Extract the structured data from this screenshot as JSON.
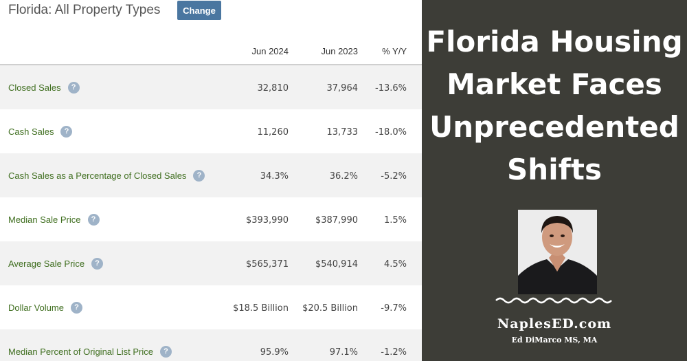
{
  "header": {
    "title": "Florida: All Property Types",
    "change_label": "Change"
  },
  "table": {
    "columns": [
      "Jun 2024",
      "Jun 2023",
      "% Y/Y"
    ],
    "help_glyph": "?",
    "rows": [
      {
        "label": "Closed Sales",
        "jun2024": "32,810",
        "jun2023": "37,964",
        "yoy": "-13.6%"
      },
      {
        "label": "Cash Sales",
        "jun2024": "11,260",
        "jun2023": "13,733",
        "yoy": "-18.0%"
      },
      {
        "label": "Cash Sales as a Percentage of Closed Sales",
        "jun2024": "34.3%",
        "jun2023": "36.2%",
        "yoy": "-5.2%"
      },
      {
        "label": "Median Sale Price",
        "jun2024": "$393,990",
        "jun2023": "$387,990",
        "yoy": "1.5%"
      },
      {
        "label": "Average Sale Price",
        "jun2024": "$565,371",
        "jun2023": "$540,914",
        "yoy": "4.5%"
      },
      {
        "label": "Dollar Volume",
        "jun2024": "$18.5 Billion",
        "jun2023": "$20.5 Billion",
        "yoy": "-9.7%"
      },
      {
        "label": "Median Percent of Original List Price",
        "jun2024": "95.9%",
        "jun2023": "97.1%",
        "yoy": "-1.2%"
      }
    ]
  },
  "banner": {
    "headline_lines": [
      "Florida Housing",
      "Market Faces",
      "Unprecedented",
      "Shifts"
    ],
    "site": "NaplesED.com",
    "author": "Ed DiMarco MS, MA",
    "background_color": "#3d3d37",
    "accent_color": "#4a76a0",
    "label_color": "#3f6e1f"
  }
}
